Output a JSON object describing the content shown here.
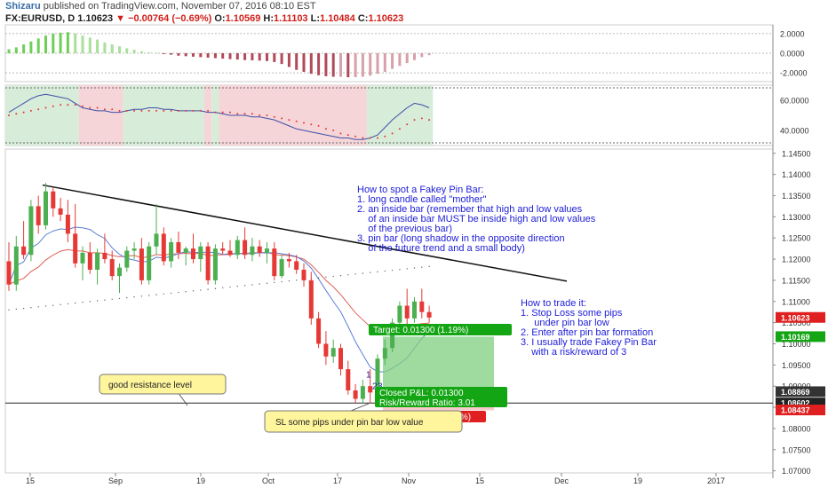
{
  "header": {
    "author": "Shizaru",
    "published_text": "published on TradingView.com, November 07, 2016 08:10 EST",
    "symbol": "FX:EURUSD, D",
    "last": "1.10623",
    "change": "−0.00764 (−0.69%)",
    "ohlc": {
      "O": "1.10569",
      "H": "1.11103",
      "L": "1.10484",
      "C": "1.10623"
    }
  },
  "colors": {
    "bull": "#4caf50",
    "bear": "#e53935",
    "osc_up": "#6ecf57",
    "osc_down": "#b24a5a",
    "ema": "#e06055",
    "ma_blue": "#5b7fd6",
    "annotation_blue": "#2020d8",
    "target_green": "#14a514",
    "stop_red": "#e02020",
    "sticky_yellow": "#fff59d"
  },
  "chart_data": {
    "type": "candlestick",
    "x_ticks": [
      "15",
      "Sep",
      "19",
      "Oct",
      "17",
      "Nov",
      "15",
      "Dec",
      "19",
      "2017"
    ],
    "y_ticks": [
      "1.14500",
      "1.14000",
      "1.13500",
      "1.13000",
      "1.12500",
      "1.12000",
      "1.11500",
      "1.11000",
      "1.10500",
      "1.10000",
      "1.09500",
      "1.09000",
      "1.08500",
      "1.08000",
      "1.07500",
      "1.07000"
    ],
    "y_range": [
      1.0695,
      1.146
    ],
    "candles": [
      [
        1.1195,
        1.124,
        1.1125,
        1.114
      ],
      [
        1.114,
        1.1255,
        1.1125,
        1.123
      ],
      [
        1.123,
        1.129,
        1.12,
        1.121
      ],
      [
        1.121,
        1.134,
        1.1195,
        1.1325
      ],
      [
        1.1325,
        1.135,
        1.126,
        1.128
      ],
      [
        1.128,
        1.138,
        1.127,
        1.136
      ],
      [
        1.136,
        1.137,
        1.13,
        1.132
      ],
      [
        1.132,
        1.1345,
        1.129,
        1.1305
      ],
      [
        1.1305,
        1.134,
        1.124,
        1.126
      ],
      [
        1.126,
        1.133,
        1.118,
        1.119
      ],
      [
        1.119,
        1.123,
        1.115,
        1.1215
      ],
      [
        1.1215,
        1.124,
        1.1165,
        1.1175
      ],
      [
        1.1175,
        1.1225,
        1.114,
        1.1215
      ],
      [
        1.1215,
        1.126,
        1.119,
        1.12
      ],
      [
        1.12,
        1.122,
        1.115,
        1.116
      ],
      [
        1.116,
        1.119,
        1.112,
        1.118
      ],
      [
        1.118,
        1.123,
        1.117,
        1.122
      ],
      [
        1.122,
        1.124,
        1.12,
        1.1225
      ],
      [
        1.1225,
        1.125,
        1.114,
        1.115
      ],
      [
        1.115,
        1.124,
        1.114,
        1.123
      ],
      [
        1.123,
        1.133,
        1.121,
        1.126
      ],
      [
        1.126,
        1.1275,
        1.1185,
        1.1195
      ],
      [
        1.1195,
        1.125,
        1.118,
        1.124
      ],
      [
        1.124,
        1.1265,
        1.12,
        1.1215
      ],
      [
        1.1215,
        1.123,
        1.1185,
        1.1225
      ],
      [
        1.1225,
        1.126,
        1.119,
        1.12
      ],
      [
        1.12,
        1.124,
        1.117,
        1.123
      ],
      [
        1.123,
        1.124,
        1.114,
        1.115
      ],
      [
        1.115,
        1.1235,
        1.114,
        1.1225
      ],
      [
        1.1225,
        1.124,
        1.121,
        1.122
      ],
      [
        1.122,
        1.1245,
        1.1205,
        1.121
      ],
      [
        1.121,
        1.1255,
        1.12,
        1.1245
      ],
      [
        1.1245,
        1.1275,
        1.12,
        1.121
      ],
      [
        1.121,
        1.125,
        1.1195,
        1.123
      ],
      [
        1.123,
        1.1245,
        1.1205,
        1.1215
      ],
      [
        1.1215,
        1.124,
        1.119,
        1.1225
      ],
      [
        1.1225,
        1.124,
        1.115,
        1.116
      ],
      [
        1.116,
        1.121,
        1.1155,
        1.12
      ],
      [
        1.12,
        1.1215,
        1.118,
        1.1195
      ],
      [
        1.1195,
        1.121,
        1.1165,
        1.1175
      ],
      [
        1.1175,
        1.119,
        1.1135,
        1.115
      ],
      [
        1.115,
        1.117,
        1.1045,
        1.106
      ],
      [
        1.106,
        1.1075,
        1.099,
        1.1
      ],
      [
        1.1,
        1.103,
        1.095,
        1.097
      ],
      [
        1.097,
        1.101,
        1.0955,
        1.099
      ],
      [
        1.099,
        1.1,
        1.0925,
        1.094
      ],
      [
        1.094,
        1.096,
        1.088,
        1.089
      ],
      [
        1.089,
        1.0905,
        1.086,
        1.087
      ],
      [
        1.087,
        1.0915,
        1.086,
        1.09
      ],
      [
        1.09,
        1.094,
        1.086,
        1.0885
      ],
      [
        1.0885,
        1.0975,
        1.0875,
        1.0965
      ],
      [
        1.0965,
        1.101,
        1.095,
        1.099
      ],
      [
        1.099,
        1.106,
        1.098,
        1.105
      ],
      [
        1.105,
        1.11,
        1.104,
        1.109
      ],
      [
        1.109,
        1.113,
        1.1045,
        1.106
      ],
      [
        1.106,
        1.111,
        1.105,
        1.11
      ],
      [
        1.11,
        1.113,
        1.106,
        1.1075
      ],
      [
        1.1075,
        1.109,
        1.105,
        1.1062
      ]
    ],
    "indicators": {
      "osc_values": [
        0.4,
        0.6,
        0.9,
        1.2,
        1.5,
        1.8,
        2.0,
        2.1,
        2.15,
        2.0,
        1.8,
        1.6,
        1.4,
        1.1,
        0.9,
        0.7,
        0.5,
        0.35,
        0.2,
        0.1,
        0.05,
        -0.05,
        -0.15,
        -0.25,
        -0.3,
        -0.35,
        -0.4,
        -0.45,
        -0.5,
        -0.55,
        -0.6,
        -0.65,
        -0.7,
        -0.72,
        -0.75,
        -0.8,
        -0.9,
        -1.1,
        -1.4,
        -1.7,
        -1.9,
        -2.1,
        -2.25,
        -2.35,
        -2.4,
        -2.4,
        -2.45,
        -2.45,
        -2.4,
        -2.3,
        -2.1,
        -1.9,
        -1.6,
        -1.3,
        -1.0,
        -0.7,
        -0.4,
        -0.2
      ],
      "rsi_line": [
        52,
        55,
        58,
        61,
        63,
        64,
        63,
        62,
        61,
        58,
        55,
        54,
        53,
        53,
        52,
        52,
        53,
        54,
        54,
        55,
        55,
        54,
        54,
        53,
        53,
        53,
        53,
        52,
        52,
        51,
        50,
        50,
        50,
        49,
        49,
        48,
        47,
        45,
        43,
        41,
        40,
        39,
        38,
        37,
        36,
        35,
        35,
        34,
        34,
        35,
        37,
        42,
        47,
        51,
        55,
        58,
        57,
        55
      ],
      "rsi_signal": [
        50,
        51,
        52,
        53,
        54,
        55,
        56,
        57,
        57,
        57,
        56,
        55,
        55,
        54,
        54,
        53,
        53,
        53,
        53,
        53,
        53,
        53,
        53,
        53,
        53,
        53,
        53,
        53,
        52,
        52,
        52,
        51,
        51,
        51,
        50,
        50,
        49,
        48,
        47,
        46,
        45,
        44,
        43,
        41,
        40,
        38,
        37,
        36,
        35,
        35,
        35,
        36,
        38,
        41,
        44,
        47,
        48,
        47
      ],
      "rsi_ticks": [
        "60.0000",
        "40.0000"
      ],
      "osc_ticks": [
        "2.0000",
        "0.0000",
        "-2.0000"
      ]
    },
    "price_tags": [
      {
        "label": "1.10623",
        "value": 1.10623,
        "color": "#e02020"
      },
      {
        "label": "1.10169",
        "value": 1.10169,
        "color": "#14a514"
      },
      {
        "label": "1.08869",
        "value": 1.08869,
        "color": "#333333"
      },
      {
        "label": "1.08602",
        "value": 1.08602,
        "color": "#222222"
      },
      {
        "label": "1.08437",
        "value": 1.08437,
        "color": "#e02020"
      }
    ],
    "horizontal_line": 1.086,
    "trendline": [
      [
        1.1375,
        0
      ],
      [
        1.1148,
        1
      ]
    ],
    "position": {
      "entry": 1.0887,
      "target": 1.1017,
      "stop": 1.0843,
      "target_label": "Target: 0.01300 (1.19%)",
      "stop_label": "Stop: 0.00432 (0.40%)",
      "pl_label": "Closed P&L: 0.01300",
      "rr_label": "Risk/Reward Ratio: 3.01"
    },
    "pattern_labels": [
      "1",
      "2",
      "3"
    ]
  },
  "annotations": {
    "spot_title": "How to spot a Fakey Pin Bar:",
    "spot_lines": [
      "1. long candle called \"mother\"",
      "2. an inside bar (remember that high and low values",
      "    of an inside bar MUST be inside high and low values",
      "    of the previous bar)",
      "3. pin bar (long shadow in the opposite direction",
      "    of the future trend and a small body)"
    ],
    "trade_title": "How to trade it:",
    "trade_lines": [
      "1. Stop Loss some pips",
      "     under pin bar low",
      "2. Enter after pin bar formation",
      "3. I usually trade Fakey Pin Bar",
      "    with a risk/reward of 3"
    ],
    "resistance_note": "good resistance level",
    "sl_note": "SL some pips under pin bar low value"
  }
}
